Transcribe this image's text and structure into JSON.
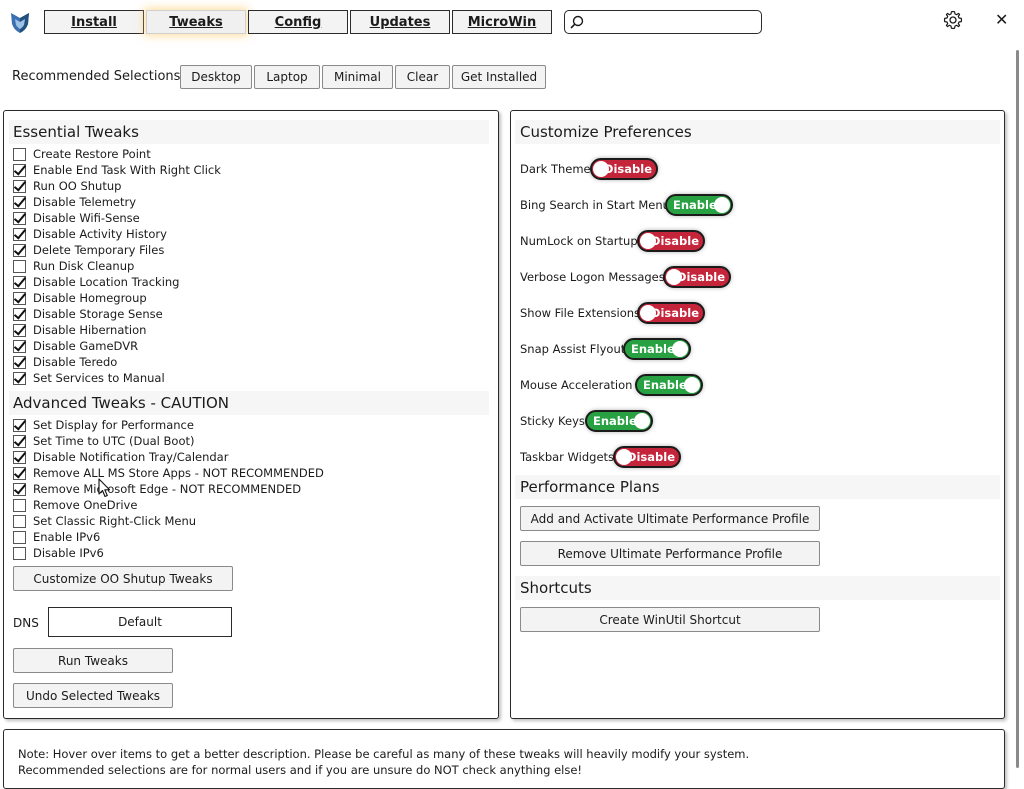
{
  "nav": {
    "tabs": [
      {
        "label": "Install",
        "active": false
      },
      {
        "label": "Tweaks",
        "active": true
      },
      {
        "label": "Config",
        "active": false
      },
      {
        "label": "Updates",
        "active": false
      },
      {
        "label": "MicroWin",
        "active": false
      }
    ],
    "search_value": ""
  },
  "recommended": {
    "label": "Recommended Selections:",
    "buttons": [
      "Desktop",
      "Laptop",
      "Minimal",
      "Clear",
      "Get Installed"
    ]
  },
  "essential": {
    "title": "Essential Tweaks",
    "items": [
      {
        "label": "Create Restore Point",
        "checked": false
      },
      {
        "label": "Enable End Task With Right Click",
        "checked": true
      },
      {
        "label": "Run OO Shutup",
        "checked": true
      },
      {
        "label": "Disable Telemetry",
        "checked": true
      },
      {
        "label": "Disable Wifi-Sense",
        "checked": true
      },
      {
        "label": "Disable Activity History",
        "checked": true
      },
      {
        "label": "Delete Temporary Files",
        "checked": true
      },
      {
        "label": "Run Disk Cleanup",
        "checked": false
      },
      {
        "label": "Disable Location Tracking",
        "checked": true
      },
      {
        "label": "Disable Homegroup",
        "checked": true
      },
      {
        "label": "Disable Storage Sense",
        "checked": true
      },
      {
        "label": "Disable Hibernation",
        "checked": true
      },
      {
        "label": "Disable GameDVR",
        "checked": true
      },
      {
        "label": "Disable Teredo",
        "checked": true
      },
      {
        "label": "Set Services to Manual",
        "checked": true
      }
    ]
  },
  "advanced": {
    "title": "Advanced Tweaks - CAUTION",
    "items": [
      {
        "label": "Set Display for Performance",
        "checked": true
      },
      {
        "label": "Set Time to UTC (Dual Boot)",
        "checked": true
      },
      {
        "label": "Disable Notification Tray/Calendar",
        "checked": true
      },
      {
        "label": "Remove ALL MS Store Apps - NOT RECOMMENDED",
        "checked": true
      },
      {
        "label": "Remove Microsoft Edge - NOT RECOMMENDED",
        "checked": true
      },
      {
        "label": "Remove OneDrive",
        "checked": false
      },
      {
        "label": "Set Classic Right-Click Menu",
        "checked": false
      },
      {
        "label": "Enable IPv6",
        "checked": false
      },
      {
        "label": "Disable IPv6",
        "checked": false
      }
    ],
    "customize_button": "Customize OO Shutup Tweaks"
  },
  "dns": {
    "label": "DNS",
    "value": "Default"
  },
  "actions": {
    "run_tweaks": "Run Tweaks",
    "undo_tweaks": "Undo Selected Tweaks"
  },
  "preferences": {
    "title": "Customize Preferences",
    "items": [
      {
        "label": "Dark Theme",
        "state": "Disable"
      },
      {
        "label": "Bing Search in Start Menu",
        "state": "Enable"
      },
      {
        "label": "NumLock on Startup",
        "state": "Disable"
      },
      {
        "label": "Verbose Logon Messages",
        "state": "Disable"
      },
      {
        "label": "Show File Extensions",
        "state": "Disable"
      },
      {
        "label": "Snap Assist Flyout",
        "state": "Enable"
      },
      {
        "label": "Mouse Acceleration",
        "state": "Enable"
      },
      {
        "label": "Sticky Keys",
        "state": "Enable"
      },
      {
        "label": "Taskbar Widgets",
        "state": "Disable"
      }
    ]
  },
  "performance": {
    "title": "Performance Plans",
    "add_button": "Add and Activate Ultimate Performance Profile",
    "remove_button": "Remove Ultimate Performance Profile"
  },
  "shortcuts": {
    "title": "Shortcuts",
    "create_button": "Create WinUtil Shortcut"
  },
  "note": {
    "line1": "Note: Hover over items to get a better description. Please be careful as many of these tweaks will heavily modify your system.",
    "line2": "Recommended selections are for normal users and if you are unsure do NOT check anything else!"
  },
  "colors": {
    "enable": "#27a142",
    "disable": "#c4253b",
    "active_tab_glow": "#ffc45a"
  },
  "icons": {
    "logo": "shield-logo-icon",
    "search": "search-icon",
    "settings": "gear-icon",
    "close": "close-icon"
  }
}
